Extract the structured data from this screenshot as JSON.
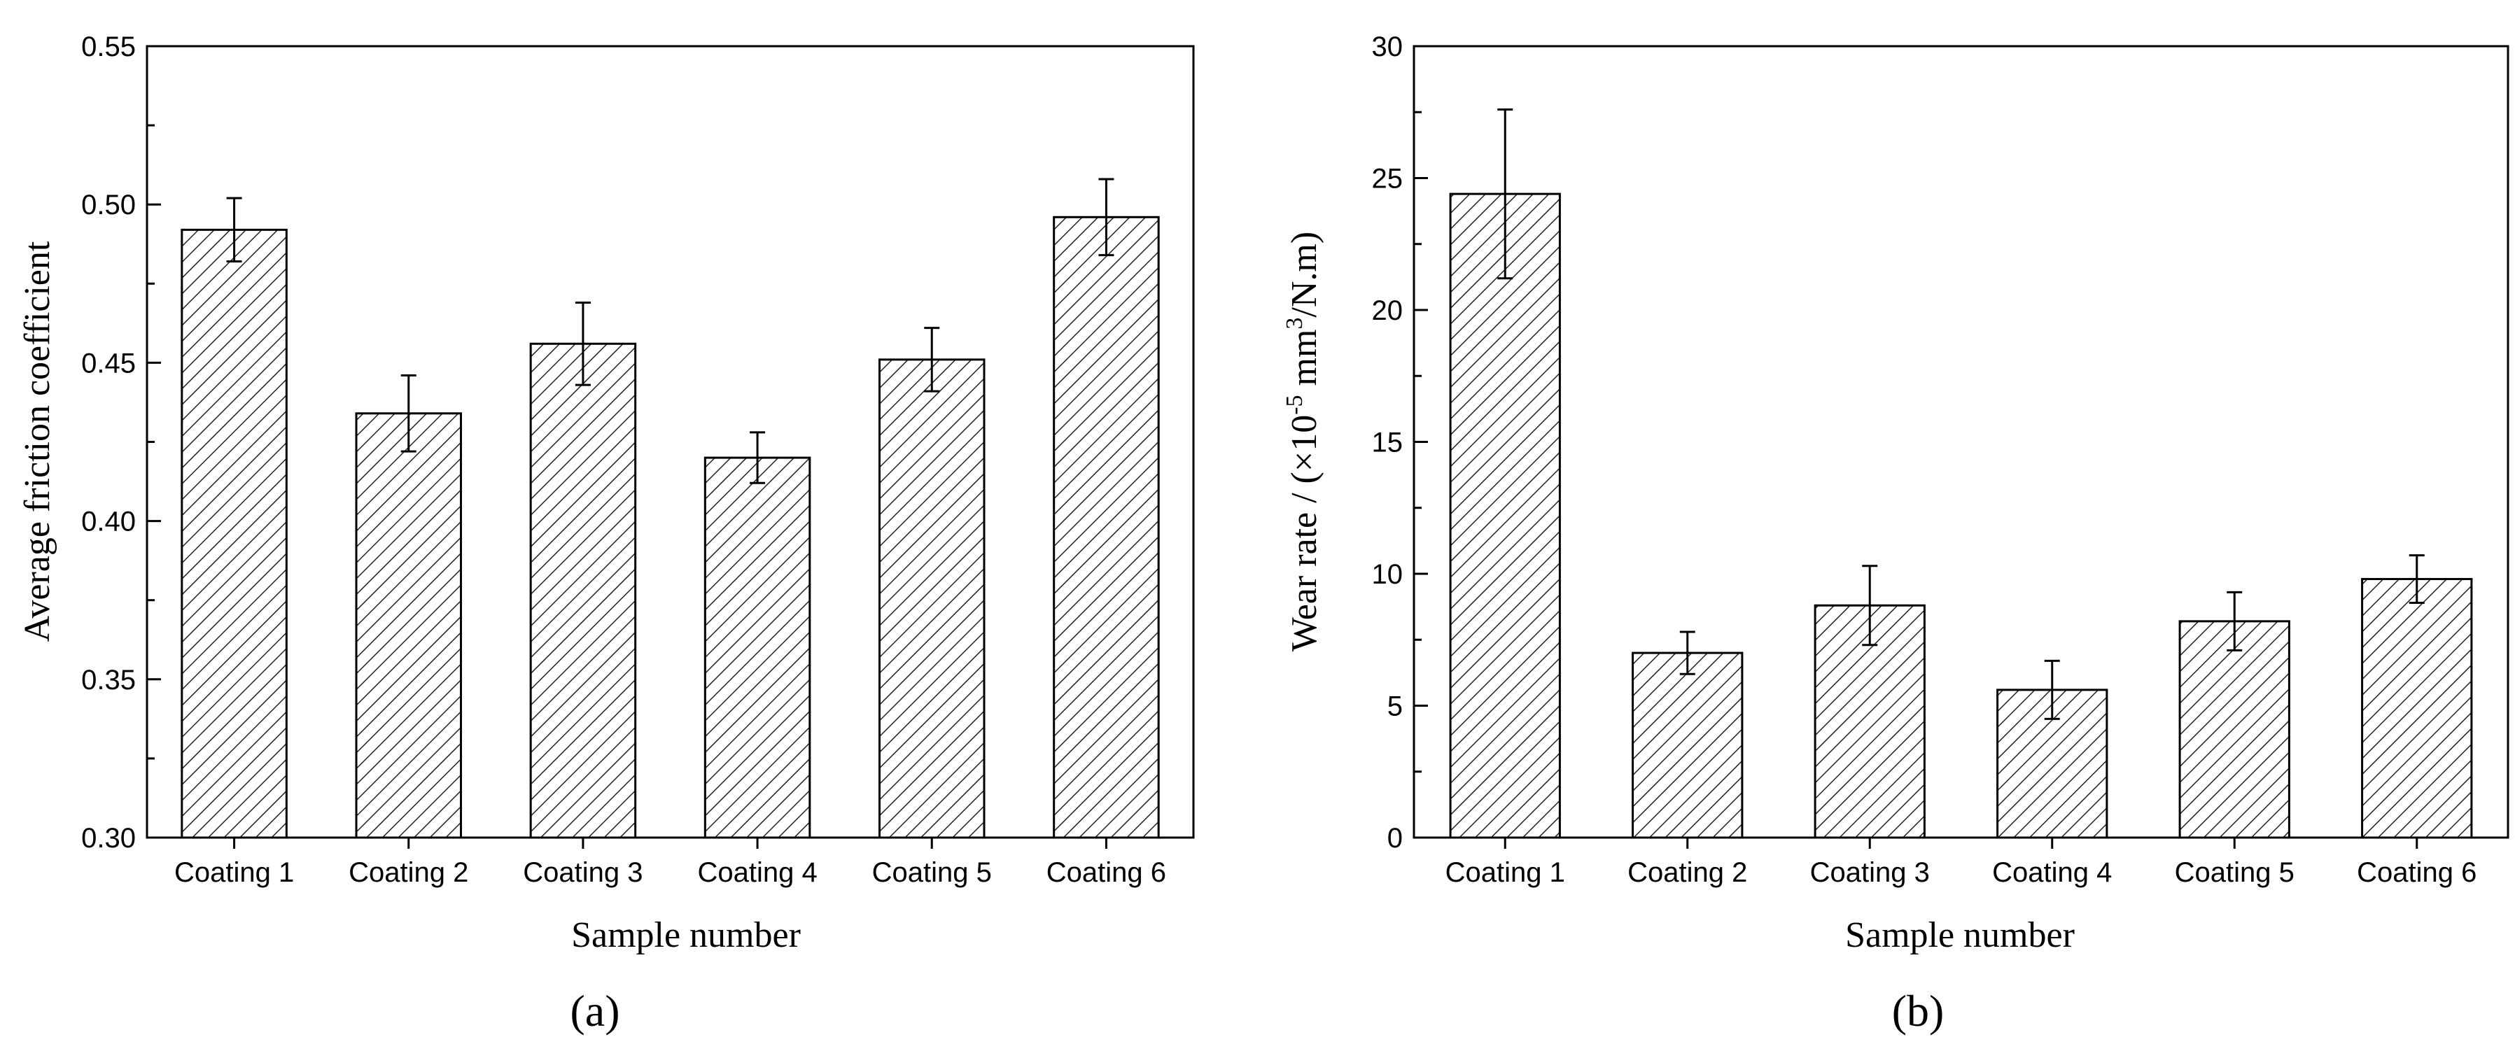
{
  "chart_data": [
    {
      "type": "bar",
      "panel_label": "(a)",
      "categories": [
        "Coating 1",
        "Coating 2",
        "Coating 3",
        "Coating 4",
        "Coating 5",
        "Coating 6"
      ],
      "values": [
        0.492,
        0.434,
        0.456,
        0.42,
        0.451,
        0.496
      ],
      "errors": [
        0.01,
        0.012,
        0.013,
        0.008,
        0.01,
        0.012
      ],
      "xlabel": "Sample number",
      "ylabel": "Average friction coefficient",
      "ylim": [
        0.3,
        0.55
      ],
      "yticks": [
        0.3,
        0.35,
        0.4,
        0.45,
        0.5,
        0.55
      ],
      "ytick_labels": [
        "0.30",
        "0.35",
        "0.40",
        "0.45",
        "0.50",
        "0.55"
      ],
      "grid": false,
      "bar_fill": "diagonal-hatch"
    },
    {
      "type": "bar",
      "panel_label": "(b)",
      "categories": [
        "Coating 1",
        "Coating 2",
        "Coating 3",
        "Coating 4",
        "Coating 5",
        "Coating 6"
      ],
      "values": [
        24.4,
        7.0,
        8.8,
        5.6,
        8.2,
        9.8
      ],
      "errors": [
        3.2,
        0.8,
        1.5,
        1.1,
        1.1,
        0.9
      ],
      "xlabel": "Sample number",
      "ylabel": {
        "prefix": "Wear rate / (×10",
        "exp1": "-5",
        "middle": " mm",
        "exp2": "3",
        "suffix": "/N.m)"
      },
      "ylim": [
        0,
        30
      ],
      "yticks": [
        0,
        5,
        10,
        15,
        20,
        25,
        30
      ],
      "ytick_labels": [
        "0",
        "5",
        "10",
        "15",
        "20",
        "25",
        "30"
      ],
      "grid": false,
      "bar_fill": "diagonal-hatch"
    }
  ]
}
